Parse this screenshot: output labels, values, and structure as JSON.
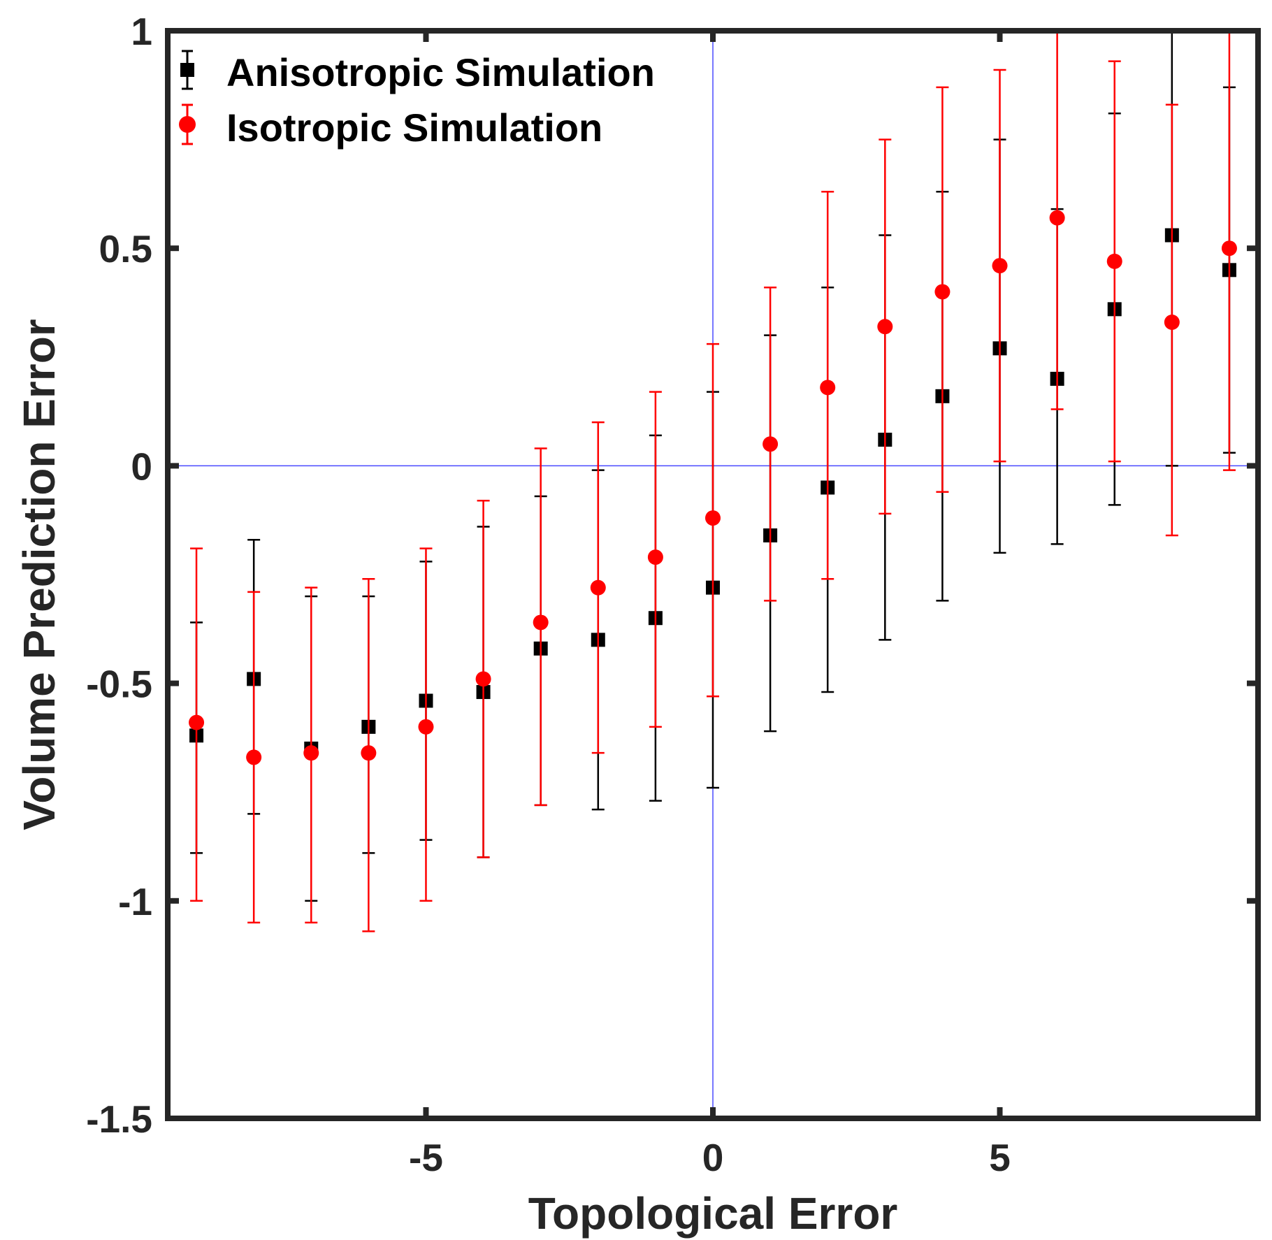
{
  "chart_data": {
    "type": "scatter",
    "title": "",
    "xlabel": "Topological Error",
    "ylabel": "Volume Prediction Error",
    "xlim": [
      -9.5,
      9.5
    ],
    "ylim": [
      -1.5,
      1
    ],
    "xticks": [
      -5,
      0,
      5
    ],
    "xtick_labels": [
      "-5",
      "0",
      "5"
    ],
    "yticks": [
      -1.5,
      -1,
      -0.5,
      0,
      0.5,
      1
    ],
    "ytick_labels": [
      "-1.5",
      "-1",
      "-0.5",
      "0",
      "0.5",
      "1"
    ],
    "grid": false,
    "reference_lines": {
      "x": 0,
      "y": 0,
      "color": "#4a4aff"
    },
    "legend_position": "top-left",
    "series": [
      {
        "name": "Anisotropic Simulation",
        "marker": "square",
        "color": "#000000",
        "x": [
          -9,
          -8,
          -7,
          -6,
          -5,
          -4,
          -3,
          -2,
          -1,
          0,
          1,
          2,
          3,
          4,
          5,
          6,
          7,
          8,
          9
        ],
        "y": [
          -0.62,
          -0.49,
          -0.65,
          -0.6,
          -0.54,
          -0.52,
          -0.42,
          -0.4,
          -0.35,
          -0.28,
          -0.16,
          -0.05,
          0.06,
          0.16,
          0.27,
          0.2,
          0.36,
          0.53,
          0.45
        ],
        "y_low": [
          -0.89,
          -0.8,
          -1.0,
          -0.89,
          -0.86,
          -0.9,
          -0.78,
          -0.79,
          -0.77,
          -0.74,
          -0.61,
          -0.52,
          -0.4,
          -0.31,
          -0.2,
          -0.18,
          -0.09,
          0.0,
          0.03
        ],
        "y_high": [
          -0.36,
          -0.17,
          -0.3,
          -0.3,
          -0.22,
          -0.14,
          -0.07,
          -0.01,
          0.07,
          0.17,
          0.3,
          0.41,
          0.53,
          0.63,
          0.75,
          0.59,
          0.81,
          1.06,
          0.87
        ]
      },
      {
        "name": "Isotropic Simulation",
        "marker": "circle",
        "color": "#ff0000",
        "x": [
          -9,
          -8,
          -7,
          -6,
          -5,
          -4,
          -3,
          -2,
          -1,
          0,
          1,
          2,
          3,
          4,
          5,
          6,
          7,
          8,
          9
        ],
        "y": [
          -0.59,
          -0.67,
          -0.66,
          -0.66,
          -0.6,
          -0.49,
          -0.36,
          -0.28,
          -0.21,
          -0.12,
          0.05,
          0.18,
          0.32,
          0.4,
          0.46,
          0.57,
          0.47,
          0.33,
          0.5
        ],
        "y_low": [
          -1.0,
          -1.05,
          -1.05,
          -1.07,
          -1.0,
          -0.9,
          -0.78,
          -0.66,
          -0.6,
          -0.53,
          -0.31,
          -0.26,
          -0.11,
          -0.06,
          0.01,
          0.13,
          0.01,
          -0.16,
          -0.01
        ],
        "y_high": [
          -0.19,
          -0.29,
          -0.28,
          -0.26,
          -0.19,
          -0.08,
          0.04,
          0.1,
          0.17,
          0.28,
          0.41,
          0.63,
          0.75,
          0.87,
          0.91,
          1.02,
          0.93,
          0.83,
          1.02
        ]
      }
    ]
  }
}
